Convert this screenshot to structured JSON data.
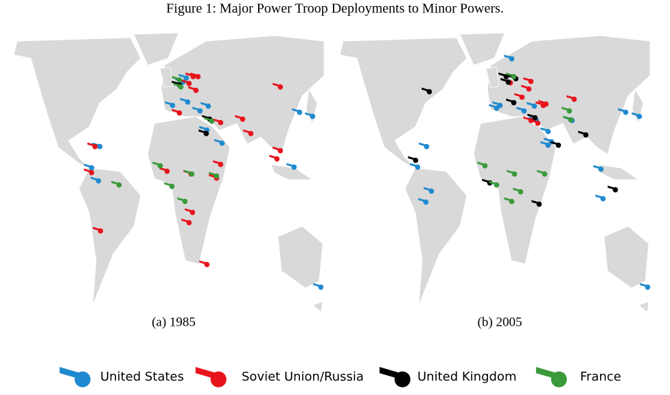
{
  "title": "Figure 1: Major Power Troop Deployments to Minor Powers.",
  "panels": [
    {
      "caption": "(a) 1985"
    },
    {
      "caption": "(b) 2005"
    }
  ],
  "legend": [
    {
      "label": "United States",
      "color": "#1f8ad0"
    },
    {
      "label": "Soviet Union/Russia",
      "color": "#e8141c"
    },
    {
      "label": "United Kingdom",
      "color": "#000000"
    },
    {
      "label": "France",
      "color": "#3a9a3a"
    }
  ]
}
